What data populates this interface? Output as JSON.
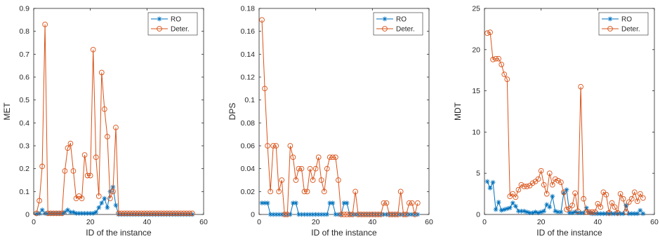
{
  "colors": {
    "ro": "#0072BD",
    "deter": "#D95319",
    "axis": "#262626"
  },
  "chart_data": [
    {
      "type": "line",
      "title": "",
      "xlabel": "ID of the instance",
      "ylabel": "MET",
      "xlim": [
        0,
        60
      ],
      "ylim": [
        0,
        0.9
      ],
      "xticks": [
        0,
        20,
        40,
        60
      ],
      "xtick_labels": [
        "0",
        "20",
        "40",
        "60"
      ],
      "yticks": [
        0,
        0.1,
        0.2,
        0.3,
        0.4,
        0.5,
        0.6,
        0.7,
        0.8,
        0.9
      ],
      "ytick_labels": [
        "0",
        "0.1",
        "0.2",
        "0.3",
        "0.4",
        "0.5",
        "0.6",
        "0.7",
        "0.8",
        "0.9"
      ],
      "grid": false,
      "legend_position": "top-right",
      "x": [
        1,
        2,
        3,
        4,
        5,
        6,
        7,
        8,
        9,
        10,
        11,
        12,
        13,
        14,
        15,
        16,
        17,
        18,
        19,
        20,
        21,
        22,
        23,
        24,
        25,
        26,
        27,
        28,
        29,
        30,
        31,
        32,
        33,
        34,
        35,
        36,
        37,
        38,
        39,
        40,
        41,
        42,
        43,
        44,
        45,
        46,
        47,
        48,
        49,
        50,
        51,
        52,
        53,
        54,
        55,
        56
      ],
      "series": [
        {
          "name": "RO",
          "marker": "star",
          "values": [
            0.003,
            0.004,
            0.02,
            0.005,
            0.004,
            0.004,
            0.004,
            0.004,
            0.004,
            0.004,
            0.01,
            0.02,
            0.01,
            0.01,
            0.005,
            0.005,
            0.005,
            0.005,
            0.005,
            0.005,
            0.005,
            0.01,
            0.03,
            0.05,
            0.07,
            0.03,
            0.1,
            0.12,
            0.04,
            0,
            0,
            0,
            0,
            0,
            0,
            0,
            0,
            0,
            0,
            0,
            0,
            0,
            0,
            0,
            0,
            0,
            0,
            0,
            0,
            0,
            0,
            0,
            0,
            0,
            0,
            0
          ]
        },
        {
          "name": "Deter.",
          "marker": "circle",
          "values": [
            0.005,
            0.06,
            0.21,
            0.83,
            0.005,
            0.005,
            0.005,
            0.005,
            0.005,
            0.005,
            0.19,
            0.29,
            0.31,
            0.19,
            0.07,
            0.08,
            0.07,
            0.26,
            0.17,
            0.17,
            0.72,
            0.25,
            0.08,
            0.62,
            0.46,
            0.34,
            0.07,
            0.1,
            0.38,
            0.005,
            0.005,
            0.005,
            0.005,
            0.005,
            0.005,
            0.005,
            0.005,
            0.005,
            0.005,
            0.005,
            0.005,
            0.005,
            0.005,
            0.005,
            0.005,
            0.005,
            0.005,
            0.005,
            0.005,
            0.005,
            0.005,
            0.005,
            0.005,
            0.005,
            0.005,
            0.005
          ]
        }
      ]
    },
    {
      "type": "line",
      "title": "",
      "xlabel": "ID of the instance",
      "ylabel": "DPS",
      "xlim": [
        0,
        60
      ],
      "ylim": [
        0,
        0.18
      ],
      "xticks": [
        0,
        20,
        40,
        60
      ],
      "xtick_labels": [
        "0",
        "20",
        "40",
        "60"
      ],
      "yticks": [
        0,
        0.02,
        0.04,
        0.06,
        0.08,
        0.1,
        0.12,
        0.14,
        0.16,
        0.18
      ],
      "ytick_labels": [
        "0",
        "0.02",
        "0.04",
        "0.06",
        "0.08",
        "0.1",
        "0.12",
        "0.14",
        "0.16",
        "0.18"
      ],
      "grid": false,
      "legend_position": "top-right",
      "x": [
        1,
        2,
        3,
        4,
        5,
        6,
        7,
        8,
        9,
        10,
        11,
        12,
        13,
        14,
        15,
        16,
        17,
        18,
        19,
        20,
        21,
        22,
        23,
        24,
        25,
        26,
        27,
        28,
        29,
        30,
        31,
        32,
        33,
        34,
        35,
        36,
        37,
        38,
        39,
        40,
        41,
        42,
        43,
        44,
        45,
        46,
        47,
        48,
        49,
        50,
        51,
        52,
        53,
        54,
        55,
        56
      ],
      "series": [
        {
          "name": "RO",
          "marker": "star",
          "values": [
            0.01,
            0.01,
            0.01,
            0,
            0,
            0,
            0,
            0,
            0,
            0,
            0,
            0.01,
            0.01,
            0,
            0,
            0,
            0,
            0,
            0,
            0,
            0,
            0,
            0,
            0,
            0.01,
            0.01,
            0,
            0,
            0,
            0.01,
            0.01,
            0,
            0,
            0,
            0,
            0,
            0,
            0,
            0,
            0,
            0,
            0,
            0,
            0,
            0,
            0,
            0,
            0,
            0,
            0,
            0,
            0,
            0,
            0,
            0,
            0
          ]
        },
        {
          "name": "Deter.",
          "marker": "circle",
          "values": [
            0.17,
            0.11,
            0.06,
            0.02,
            0.06,
            0.06,
            0.02,
            0.03,
            0,
            0,
            0.06,
            0.05,
            0.03,
            0.04,
            0.04,
            0.02,
            0.02,
            0.04,
            0.03,
            0.04,
            0.05,
            0.03,
            0.02,
            0.04,
            0.05,
            0.05,
            0.05,
            0.03,
            0,
            0,
            0,
            0,
            0,
            0.02,
            0,
            0,
            0,
            0,
            0,
            0,
            0,
            0,
            0,
            0.01,
            0.01,
            0,
            0,
            0,
            0,
            0.02,
            0,
            0,
            0.01,
            0.01,
            0,
            0.01
          ]
        }
      ]
    },
    {
      "type": "line",
      "title": "",
      "xlabel": "ID of the instance",
      "ylabel": "MDT",
      "xlim": [
        0,
        60
      ],
      "ylim": [
        0,
        25
      ],
      "xticks": [
        0,
        20,
        40,
        60
      ],
      "xtick_labels": [
        "0",
        "20",
        "40",
        "60"
      ],
      "yticks": [
        0,
        5,
        10,
        15,
        20,
        25
      ],
      "ytick_labels": [
        "0",
        "5",
        "10",
        "15",
        "20",
        "25"
      ],
      "grid": false,
      "legend_position": "top-right",
      "x": [
        1,
        2,
        3,
        4,
        5,
        6,
        7,
        8,
        9,
        10,
        11,
        12,
        13,
        14,
        15,
        16,
        17,
        18,
        19,
        20,
        21,
        22,
        23,
        24,
        25,
        26,
        27,
        28,
        29,
        30,
        31,
        32,
        33,
        34,
        35,
        36,
        37,
        38,
        39,
        40,
        41,
        42,
        43,
        44,
        45,
        46,
        47,
        48,
        49,
        50,
        51,
        52,
        53,
        54,
        55,
        56
      ],
      "series": [
        {
          "name": "RO",
          "marker": "star",
          "values": [
            4.0,
            3.2,
            3.9,
            0.6,
            1.5,
            0.5,
            0.6,
            0.7,
            0.8,
            1.4,
            1.0,
            0.4,
            0.4,
            0.4,
            0.3,
            0.2,
            0.2,
            0.3,
            0.2,
            0.3,
            0.4,
            1.2,
            0.9,
            2.2,
            0.4,
            0.3,
            0.3,
            2.6,
            3.0,
            0.2,
            0.2,
            0.3,
            0.2,
            0.2,
            0.2,
            0.8,
            0.2,
            0.1,
            0.1,
            0.1,
            0.1,
            0.1,
            0.1,
            0.1,
            0.1,
            0.1,
            0.1,
            0.1,
            0.1,
            1.1,
            0.1,
            0.1,
            0.1,
            0.1,
            0.5,
            0.1
          ]
        },
        {
          "name": "Deter.",
          "marker": "circle",
          "values": [
            22.0,
            22.1,
            18.8,
            18.9,
            18.9,
            18.2,
            17.0,
            16.4,
            2.2,
            2.5,
            2.1,
            3.0,
            3.6,
            3.4,
            3.4,
            3.5,
            3.8,
            4.0,
            4.3,
            5.3,
            3.6,
            2.5,
            5.0,
            3.6,
            4.3,
            4.1,
            3.9,
            2.7,
            0.6,
            0.7,
            1.1,
            2.6,
            0.4,
            15.5,
            1.9,
            0.3,
            0.3,
            0.3,
            0.3,
            1.3,
            0.9,
            2.7,
            2.4,
            0.2,
            1.4,
            0.9,
            0.2,
            2.5,
            1.9,
            0.3,
            1.5,
            1.9,
            2.7,
            1.6,
            2.5,
            2.0
          ]
        }
      ]
    }
  ]
}
